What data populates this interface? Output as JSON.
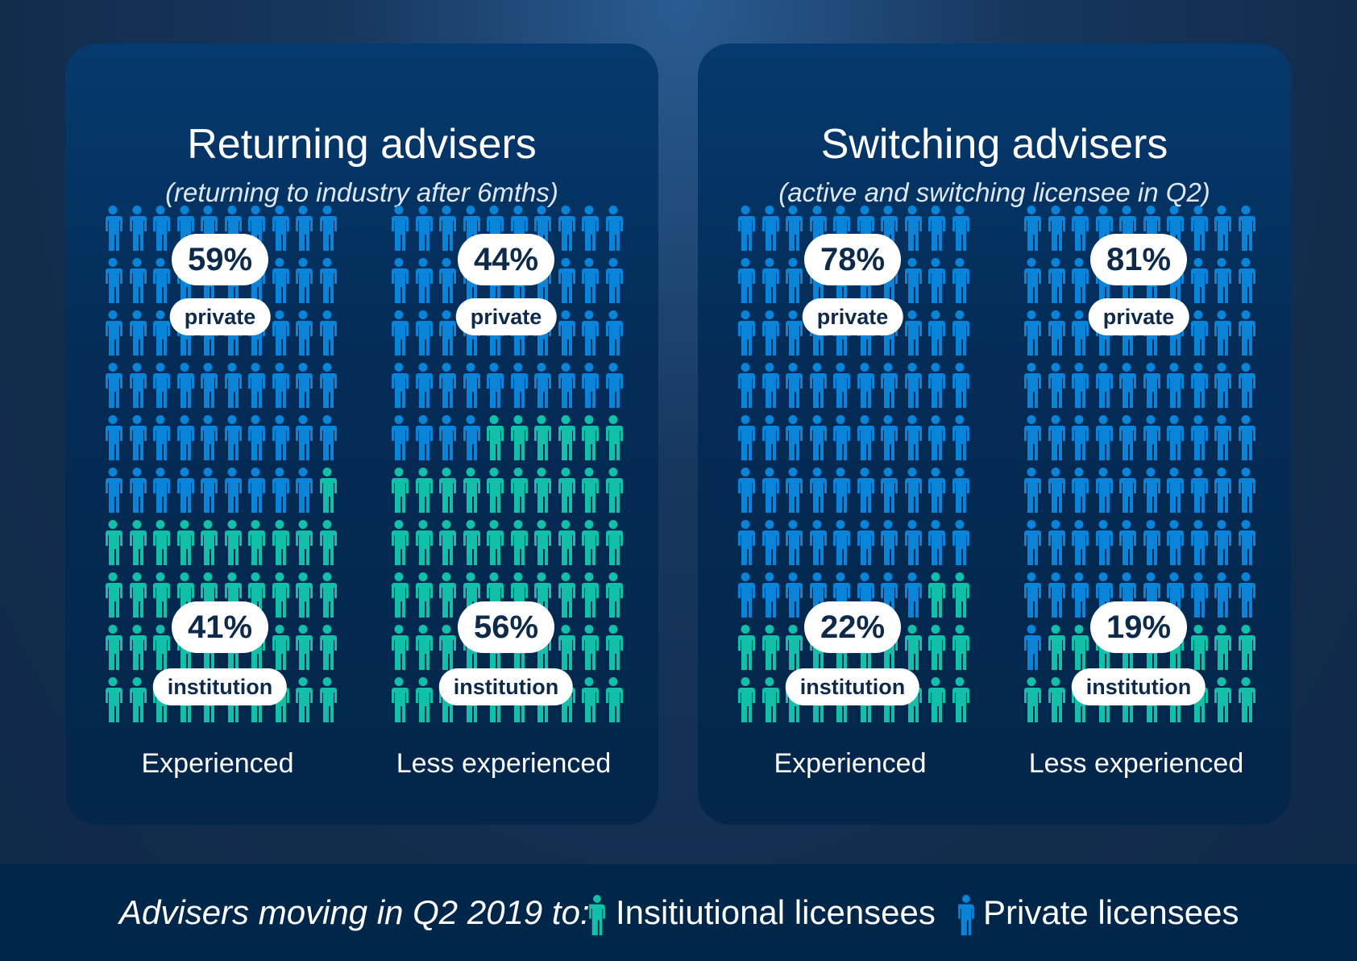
{
  "colors": {
    "private": "#0a84d8",
    "institution": "#12bfa9"
  },
  "chart_data": {
    "type": "pictogram",
    "grid": {
      "rows": 10,
      "cols": 10
    },
    "groups": [
      {
        "title": "Returning advisers",
        "subtitle": "(returning to industry after 6mths)",
        "charts": [
          {
            "category": "Experienced",
            "private": 59,
            "institution": 41,
            "private_label": "59%",
            "institution_label": "41%"
          },
          {
            "category": "Less experienced",
            "private": 44,
            "institution": 56,
            "private_label": "44%",
            "institution_label": "56%"
          }
        ]
      },
      {
        "title": "Switching advisers",
        "subtitle": "(active and switching licensee in Q2)",
        "charts": [
          {
            "category": "Experienced",
            "private": 78,
            "institution": 22,
            "private_label": "78%",
            "institution_label": "22%"
          },
          {
            "category": "Less experienced",
            "private": 81,
            "institution": 19,
            "private_label": "81%",
            "institution_label": "19%"
          }
        ]
      }
    ],
    "series_labels": {
      "private": "private",
      "institution": "institution"
    }
  },
  "legend": {
    "intro": "Advisers moving in Q2 2019 to:",
    "institution": "Insitiutional licensees",
    "private": "Private licensees",
    "icon": "person-icon"
  }
}
